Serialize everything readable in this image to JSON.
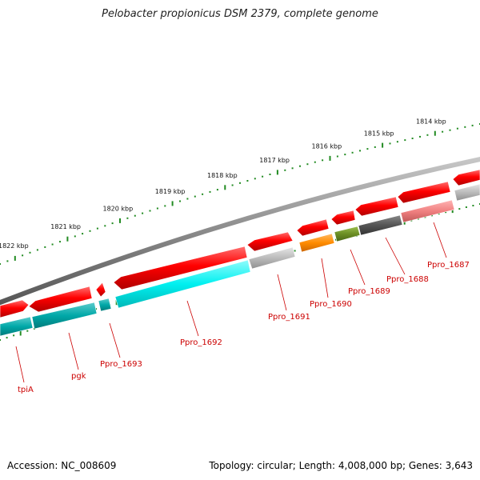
{
  "title": "Pelobacter propionicus DSM 2379, complete genome",
  "accession_text": "Accession: NC_008609",
  "summary_text": "Topology: circular; Length: 4,008,000 bp; Genes: 3,643",
  "kbp_ticks": [
    "1814 kbp",
    "1815 kbp",
    "1816 kbp",
    "1817 kbp",
    "1818 kbp",
    "1819 kbp",
    "1820 kbp",
    "1821 kbp",
    "1822 kbp"
  ],
  "gene_labels": [
    "Ppro_1687",
    "Ppro_1688",
    "Ppro_1689",
    "Ppro_1690",
    "Ppro_1691",
    "Ppro_1692",
    "Ppro_1693",
    "pgk",
    "tpiA"
  ],
  "colors": {
    "label_red": "#cc0000",
    "gene_red": "#ee0000",
    "cyan": "#00e8e8",
    "teal": "#00aaaa",
    "orange": "#ff8800",
    "olive": "#6b8e23",
    "dark_gray": "#555555",
    "light_gray": "#bbbbbb",
    "pink": "#f08080",
    "tick_green": "#228b22",
    "backbone": "#808080"
  }
}
